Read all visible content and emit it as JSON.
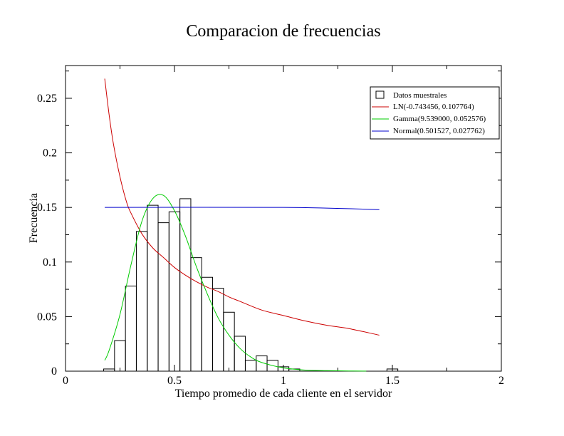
{
  "chart_data": {
    "type": "bar",
    "title": "Comparacion de frecuencias",
    "xlabel": "Tiempo promedio de cada cliente en el servidor",
    "ylabel": "Frecuencia",
    "xlim": [
      0,
      2
    ],
    "ylim": [
      0,
      0.28
    ],
    "x_ticks": [
      {
        "value": 0,
        "label": "0"
      },
      {
        "value": 0.5,
        "label": "0.5"
      },
      {
        "value": 1,
        "label": "1"
      },
      {
        "value": 1.5,
        "label": "1.5"
      },
      {
        "value": 2,
        "label": "2"
      }
    ],
    "y_ticks": [
      {
        "value": 0,
        "label": "0"
      },
      {
        "value": 0.05,
        "label": "0.05"
      },
      {
        "value": 0.1,
        "label": "0.1"
      },
      {
        "value": 0.15,
        "label": "0.15"
      },
      {
        "value": 0.2,
        "label": "0.2"
      },
      {
        "value": 0.25,
        "label": "0.25"
      }
    ],
    "grid": false,
    "legend_position": "top-right",
    "histogram": {
      "name": "Datos muestrales",
      "color": "#000000",
      "bin_width": 0.05,
      "bins": [
        {
          "x": 0.2,
          "y": 0.002
        },
        {
          "x": 0.25,
          "y": 0.028
        },
        {
          "x": 0.3,
          "y": 0.078
        },
        {
          "x": 0.35,
          "y": 0.128
        },
        {
          "x": 0.4,
          "y": 0.152
        },
        {
          "x": 0.45,
          "y": 0.136
        },
        {
          "x": 0.5,
          "y": 0.146
        },
        {
          "x": 0.55,
          "y": 0.158
        },
        {
          "x": 0.6,
          "y": 0.104
        },
        {
          "x": 0.65,
          "y": 0.086
        },
        {
          "x": 0.7,
          "y": 0.076
        },
        {
          "x": 0.75,
          "y": 0.054
        },
        {
          "x": 0.8,
          "y": 0.032
        },
        {
          "x": 0.85,
          "y": 0.01
        },
        {
          "x": 0.9,
          "y": 0.014
        },
        {
          "x": 0.95,
          "y": 0.01
        },
        {
          "x": 1.0,
          "y": 0.004
        },
        {
          "x": 1.05,
          "y": 0.002
        },
        {
          "x": 1.1,
          "y": 0.0
        },
        {
          "x": 1.15,
          "y": 0.0
        },
        {
          "x": 1.2,
          "y": 0.0
        },
        {
          "x": 1.25,
          "y": 0.0
        },
        {
          "x": 1.3,
          "y": 0.0
        },
        {
          "x": 1.35,
          "y": 0.0
        },
        {
          "x": 1.4,
          "y": 0.0
        },
        {
          "x": 1.45,
          "y": 0.0
        },
        {
          "x": 1.5,
          "y": 0.002
        }
      ]
    },
    "series": [
      {
        "name": "LN(-0.743456, 0.107764)",
        "type": "line",
        "color": "#cc0000",
        "x": [
          0.18,
          0.2,
          0.22,
          0.25,
          0.28,
          0.3,
          0.35,
          0.4,
          0.45,
          0.5,
          0.55,
          0.6,
          0.65,
          0.7,
          0.75,
          0.8,
          0.9,
          1.0,
          1.1,
          1.2,
          1.3,
          1.44
        ],
        "y": [
          0.268,
          0.235,
          0.208,
          0.178,
          0.155,
          0.145,
          0.126,
          0.113,
          0.104,
          0.095,
          0.088,
          0.082,
          0.077,
          0.073,
          0.068,
          0.064,
          0.056,
          0.051,
          0.046,
          0.042,
          0.039,
          0.033
        ]
      },
      {
        "name": "Gamma(9.539000, 0.052576)",
        "type": "line",
        "color": "#00cc00",
        "x": [
          0.18,
          0.2,
          0.25,
          0.3,
          0.35,
          0.4,
          0.45,
          0.5,
          0.55,
          0.6,
          0.65,
          0.7,
          0.75,
          0.8,
          0.85,
          0.9,
          1.0,
          1.1,
          1.2,
          1.3,
          1.38
        ],
        "y": [
          0.01,
          0.019,
          0.052,
          0.097,
          0.137,
          0.158,
          0.161,
          0.147,
          0.124,
          0.096,
          0.071,
          0.049,
          0.033,
          0.021,
          0.013,
          0.008,
          0.003,
          0.001,
          0.0005,
          0.0002,
          0.0001
        ]
      },
      {
        "name": "Normal(0.501527, 0.027762)",
        "type": "line",
        "color": "#0000cc",
        "x": [
          0.18,
          1.0,
          1.44
        ],
        "y": [
          0.15,
          0.15,
          0.148
        ]
      }
    ]
  }
}
